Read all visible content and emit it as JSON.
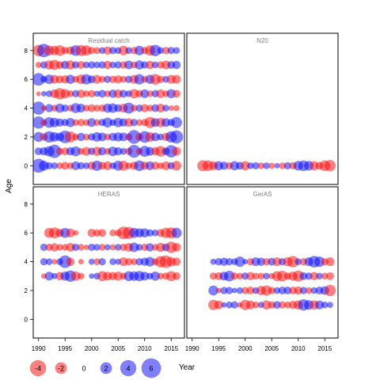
{
  "chart_data": {
    "type": "scatter",
    "ylabel": "Age",
    "xlabel": "Year",
    "colors": {
      "positive": "#0000ff",
      "negative": "#ff0000",
      "panel_title": "#808080"
    },
    "x_ticks": [
      1990,
      1995,
      2000,
      2005,
      2010,
      2015
    ],
    "y_ticks": [
      0,
      2,
      4,
      6,
      8
    ],
    "xlim": [
      1989,
      2017.5
    ],
    "ylim": [
      -1.3,
      9.2
    ],
    "legend": {
      "values": [
        -4,
        -2,
        0,
        2,
        4,
        6
      ],
      "labels": [
        "-4",
        "-2",
        "0",
        "2",
        "4",
        "6"
      ],
      "placement": "bottom-left"
    },
    "panels": [
      {
        "title": "Residual catch",
        "years": [
          1990,
          2016
        ],
        "ages": [
          0,
          1,
          2,
          3,
          4,
          5,
          6,
          7,
          8
        ],
        "residuals": [
          [
            2.5,
            1.2,
            0.6,
            0.5,
            -0.5,
            -0.7,
            -0.5,
            0.9,
            0.6,
            0.5,
            -0.8,
            1.3,
            -0.7,
            -0.9,
            0.5,
            1.2,
            -1.2,
            -0.5,
            -0.8,
            1.4,
            -0.8,
            0.9,
            -0.8,
            -0.5,
            -0.9,
            0.6,
            -1.1
          ],
          [
            0.7,
            0.8,
            1.3,
            2.3,
            -0.6,
            -0.7,
            0.8,
            1.2,
            -0.5,
            -0.9,
            0.6,
            -1.0,
            0.8,
            -0.5,
            1.1,
            0.8,
            0.5,
            -0.6,
            2.1,
            -0.5,
            1.5,
            0.9,
            -0.8,
            -1.4,
            0.7,
            1.9,
            -0.9
          ],
          [
            1.2,
            -0.7,
            1.6,
            1.1,
            0.9,
            2.0,
            -1.5,
            -0.5,
            0.8,
            -0.5,
            0.6,
            1.1,
            0.9,
            -0.5,
            0.8,
            1.0,
            0.9,
            -0.6,
            2.4,
            -0.7,
            1.7,
            -1.1,
            0.9,
            0.5,
            -0.8,
            1.6,
            2.2
          ],
          [
            1.9,
            -0.5,
            1.4,
            1.1,
            0.8,
            0.6,
            1.0,
            -0.5,
            -0.6,
            -0.5,
            0.9,
            -0.5,
            0.6,
            1.2,
            0.5,
            1.1,
            0.8,
            -0.9,
            0.6,
            -0.5,
            -0.6,
            -1.5,
            0.9,
            -1.1,
            0.9,
            0.6,
            1.5
          ],
          [
            2.2,
            -0.3,
            0.8,
            -0.5,
            1.0,
            0.6,
            -0.5,
            1.2,
            0.9,
            -0.5,
            -0.7,
            -0.5,
            -0.6,
            1.0,
            1.1,
            0.7,
            -0.9,
            1.5,
            -0.5,
            0.6,
            -0.8,
            -0.5,
            0.7,
            -0.9,
            0.5,
            -0.3,
            -0.4
          ],
          [
            -0.2,
            0.3,
            0.5,
            -0.9,
            -1.6,
            -1.1,
            -0.5,
            0.6,
            -0.8,
            -0.5,
            -0.6,
            0.4,
            0.7,
            -0.5,
            0.8,
            -0.9,
            0.7,
            0.5,
            -1.1,
            -0.6,
            0.9,
            -0.5,
            0.6,
            -0.9,
            -0.5,
            1.0,
            -0.7
          ],
          [
            2.0,
            0.5,
            1.1,
            -0.9,
            -0.7,
            -0.8,
            1.0,
            -0.5,
            -1.1,
            1.3,
            0.7,
            -0.9,
            -0.5,
            0.6,
            -0.6,
            -0.8,
            -0.5,
            0.6,
            -0.9,
            1.3,
            -0.5,
            1.0,
            -1.4,
            -0.6,
            0.5,
            -0.9,
            -0.9
          ],
          [
            -0.4,
            0.6,
            -1.0,
            -1.3,
            -0.7,
            0.8,
            -1.0,
            0.6,
            -0.7,
            0.5,
            0.6,
            0.5,
            0.6,
            -0.8,
            0.5,
            0.6,
            -0.6,
            0.9,
            -0.5,
            1.0,
            0.6,
            -0.8,
            0.5,
            -0.6,
            -0.9,
            0.7,
            0.8
          ],
          [
            -1.6,
            2.3,
            -1.2,
            -1.0,
            -1.4,
            -0.6,
            -0.8,
            1.4,
            -1.5,
            -1.3,
            -0.6,
            -0.5,
            0.5,
            -0.8,
            0.6,
            0.5,
            -1.1,
            0.5,
            -0.6,
            1.1,
            -0.6,
            -1.3,
            1.6,
            0.5,
            -0.6,
            0.6,
            0.5
          ]
        ]
      },
      {
        "title": "N20",
        "years": [
          1992,
          2016
        ],
        "ages": [
          0
        ],
        "residuals": [
          [
            -1.5,
            -1.4,
            -0.9,
            1.0,
            0.8,
            -0.6,
            1.0,
            0.7,
            -1.0,
            0.5,
            0.6,
            -0.5,
            0.5,
            -0.4,
            0.3,
            -0.5,
            0.6,
            -0.6,
            1.1,
            1.4,
            1.1,
            -1.0,
            -0.7,
            -1.4,
            -1.6
          ]
        ]
      },
      {
        "title": "HERAS",
        "years": [
          1990,
          2016
        ],
        "ages": [
          3,
          4,
          5,
          6
        ],
        "residuals": [
          [
            null,
            -0.3,
            0.9,
            0.4,
            -0.8,
            1.0,
            1.6,
            -1.1,
            -0.5,
            null,
            0.3,
            0.5,
            -1.2,
            -0.9,
            -0.8,
            -1.0,
            -0.5,
            1.2,
            1.1,
            1.3,
            0.9,
            0.5,
            1.0,
            -0.5,
            -0.6,
            -1.2,
            -0.7
          ],
          [
            null,
            0.6,
            0.5,
            -0.3,
            0.5,
            2.0,
            -0.8,
            null,
            -0.3,
            null,
            0.4,
            -0.5,
            0.6,
            null,
            0.5,
            0.4,
            -0.9,
            -0.6,
            -0.5,
            0.6,
            0.8,
            1.1,
            -0.5,
            -1.6,
            -2.0,
            -1.0,
            -0.8
          ],
          [
            null,
            0.6,
            -0.6,
            -0.8,
            -0.5,
            -0.5,
            -0.9,
            0.6,
            -0.5,
            -0.3,
            0.6,
            0.5,
            -0.5,
            0.4,
            -0.4,
            0.5,
            -0.6,
            -0.9,
            1.1,
            0.5,
            -0.6,
            0.8,
            -0.5,
            -1.0,
            0.7,
            -1.6,
            -0.9
          ],
          [
            null,
            null,
            -1.2,
            -1.5,
            -0.8,
            1.2,
            -0.9,
            -0.3,
            null,
            null,
            -0.8,
            -0.6,
            -0.7,
            null,
            -0.5,
            -0.5,
            -2.0,
            -1.8,
            1.2,
            1.0,
            1.0,
            0.6,
            0.5,
            -0.7,
            -1.3,
            -1.5,
            1.3
          ]
        ]
      },
      {
        "title": "GerAS",
        "years": [
          1994,
          2016
        ],
        "ages": [
          1,
          2,
          3,
          4
        ],
        "residuals": [
          [
            -1.3,
            -0.9,
            0.3,
            0.5,
            0.6,
            -0.3,
            -1.3,
            -0.9,
            -0.5,
            0.4,
            -1.0,
            -0.6,
            0.7,
            -0.6,
            -0.5,
            -0.8,
            -1.0,
            1.6,
            1.1,
            -1.0,
            0.9,
            0.5,
            0.4
          ],
          [
            1.2,
            -0.3,
            0.6,
            0.6,
            0.3,
            0.5,
            -0.6,
            -0.7,
            0.5,
            -1.0,
            -1.3,
            -0.6,
            0.5,
            0.7,
            0.7,
            -0.7,
            -0.8,
            0.6,
            -0.5,
            0.5,
            0.7,
            0.9,
            -1.6
          ],
          [
            -0.6,
            -0.7,
            0.9,
            1.4,
            -0.6,
            -0.5,
            0.6,
            -0.8,
            -0.5,
            -0.5,
            0.5,
            -0.4,
            -1.2,
            -1.4,
            -0.6,
            -1.0,
            -1.5,
            0.7,
            0.6,
            -0.8,
            0.5,
            -0.5,
            -0.7
          ],
          [
            0.4,
            0.6,
            0.8,
            0.6,
            0.5,
            1.3,
            0.3,
            -0.6,
            0.9,
            0.8,
            -0.6,
            0.7,
            -0.9,
            0.6,
            -1.0,
            -1.6,
            0.5,
            -0.6,
            0.9,
            1.7,
            1.3,
            -0.6,
            -0.9
          ]
        ]
      }
    ]
  }
}
